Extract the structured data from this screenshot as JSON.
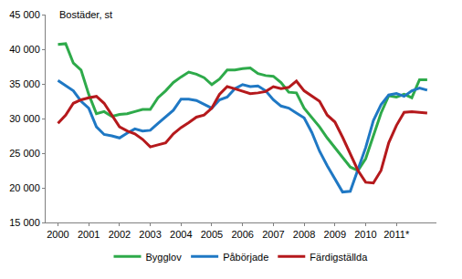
{
  "chart_data": {
    "type": "line",
    "ylabel": "Bostäder, st",
    "x": [
      2000,
      2000.25,
      2000.5,
      2000.75,
      2001,
      2001.25,
      2001.5,
      2001.75,
      2002,
      2002.25,
      2002.5,
      2002.75,
      2003,
      2003.25,
      2003.5,
      2003.75,
      2004,
      2004.25,
      2004.5,
      2004.75,
      2005,
      2005.25,
      2005.5,
      2005.75,
      2006,
      2006.25,
      2006.5,
      2006.75,
      2007,
      2007.25,
      2007.5,
      2007.75,
      2008,
      2008.25,
      2008.5,
      2008.75,
      2009,
      2009.25,
      2009.5,
      2009.75,
      2010,
      2010.25,
      2010.5,
      2010.75,
      2011,
      2011.25,
      2011.5,
      2011.75,
      2012
    ],
    "series": [
      {
        "name": "Bygglov",
        "color": "#2eaa4a",
        "values": [
          40700,
          40800,
          38000,
          37000,
          33500,
          30700,
          31000,
          30300,
          30600,
          30700,
          31000,
          31300,
          31300,
          33000,
          34000,
          35200,
          36000,
          36700,
          36400,
          35900,
          34900,
          35700,
          37000,
          37000,
          37200,
          37300,
          36500,
          36200,
          36100,
          35200,
          33800,
          33700,
          31500,
          30200,
          28800,
          27200,
          25800,
          24500,
          23000,
          22500,
          24200,
          27500,
          30800,
          33300,
          33100,
          33500,
          33000,
          35600,
          35600
        ]
      },
      {
        "name": "Påbörjade",
        "color": "#1f78c4",
        "values": [
          35500,
          34800,
          34000,
          32500,
          31500,
          28800,
          27700,
          27500,
          27200,
          27900,
          28500,
          28200,
          28300,
          29300,
          30300,
          31200,
          32800,
          32800,
          32600,
          32000,
          31500,
          32700,
          33100,
          34300,
          34900,
          34600,
          34700,
          34000,
          32700,
          31800,
          31500,
          30800,
          30100,
          28000,
          25300,
          23200,
          21300,
          19400,
          19500,
          22700,
          25800,
          29700,
          32000,
          33400,
          33600,
          33200,
          34000,
          34400,
          34100
        ]
      },
      {
        "name": "Färdigställda",
        "color": "#b5191c",
        "values": [
          29300,
          30500,
          32200,
          32700,
          33000,
          33200,
          32200,
          30500,
          28800,
          28200,
          27800,
          27000,
          25900,
          26200,
          26500,
          27800,
          28700,
          29400,
          30200,
          30500,
          31500,
          33500,
          34600,
          34300,
          34000,
          33600,
          33700,
          33900,
          34600,
          34300,
          34500,
          35400,
          34000,
          33200,
          32500,
          30500,
          29500,
          27300,
          24800,
          22500,
          20800,
          20700,
          22500,
          26500,
          29000,
          30900,
          31000,
          30900,
          30800
        ]
      }
    ],
    "xlim": [
      1999.6,
      2012.3
    ],
    "xticks": [
      2000,
      2001,
      2002,
      2003,
      2004,
      2005,
      2006,
      2007,
      2008,
      2009,
      2010,
      {
        "value": 2011,
        "label": "2011*"
      }
    ],
    "ylim": [
      15000,
      45000
    ],
    "yticks": [
      {
        "value": 15000,
        "label": "15 000"
      },
      {
        "value": 20000,
        "label": "20 000"
      },
      {
        "value": 25000,
        "label": "25 000"
      },
      {
        "value": 30000,
        "label": "30 000"
      },
      {
        "value": 35000,
        "label": "35 000"
      },
      {
        "value": 40000,
        "label": "40 000"
      },
      {
        "value": 45000,
        "label": "45 000"
      }
    ],
    "grid": false,
    "legend": "bottom"
  }
}
